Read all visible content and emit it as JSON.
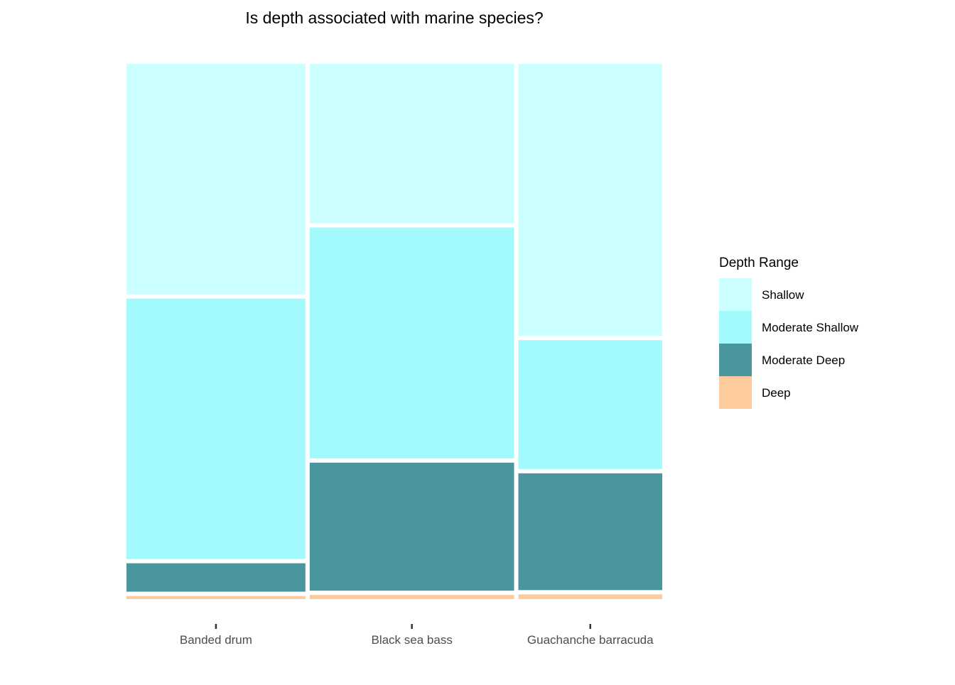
{
  "chart_data": {
    "type": "mosaic",
    "title": "Is depth associated with marine species?",
    "xlabel": "",
    "ylabel": "",
    "categories": [
      "Banded drum",
      "Black sea bass",
      "Guachanche barracuda"
    ],
    "column_widths": [
      0.337,
      0.385,
      0.271
    ],
    "legend": {
      "title": "Depth Range",
      "position": "right"
    },
    "series": [
      {
        "name": "Shallow",
        "color": "#CCFFFF",
        "values": [
          0.438,
          0.305,
          0.517
        ]
      },
      {
        "name": "Moderate Shallow",
        "color": "#A3FAFD",
        "values": [
          0.495,
          0.442,
          0.245
        ]
      },
      {
        "name": "Moderate Deep",
        "color": "#4A969E",
        "values": [
          0.054,
          0.245,
          0.222
        ]
      },
      {
        "name": "Deep",
        "color": "#FECB9C",
        "values": [
          0.006,
          0.008,
          0.009
        ]
      }
    ]
  }
}
